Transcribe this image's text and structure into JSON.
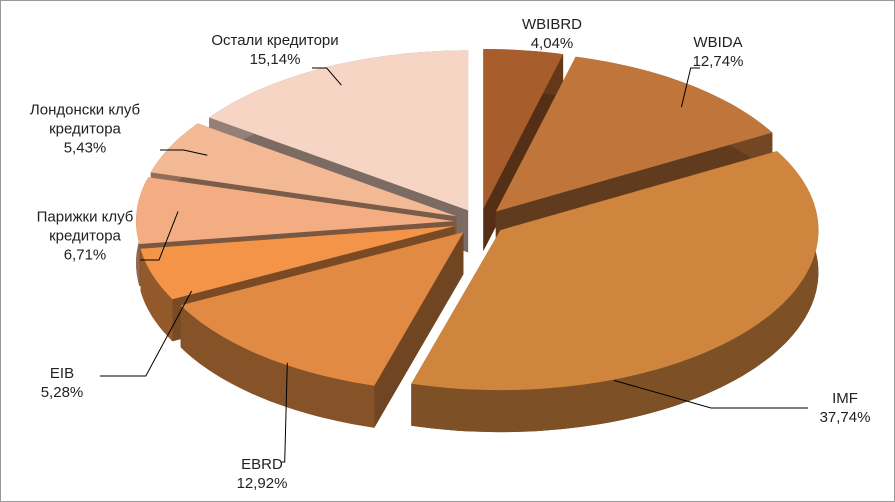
{
  "chart_data": {
    "type": "pie",
    "categories": [
      "WBIBRD",
      "WBIDA",
      "IMF",
      "EBRD",
      "EIB",
      "Парижки клуб кредитора",
      "Лондонски клуб кредитора",
      "Остали кредитори"
    ],
    "values": [
      4.04,
      12.74,
      37.74,
      12.92,
      5.28,
      6.71,
      5.43,
      15.14
    ],
    "value_labels": [
      "4,04%",
      "12,74%",
      "37,74%",
      "12,92%",
      "5,28%",
      "6,71%",
      "5,43%",
      "15,14%"
    ],
    "colors": [
      "#a85e2c",
      "#c0763a",
      "#d0853f",
      "#e08a44",
      "#f39448",
      "#f4ad82",
      "#f3b894",
      "#f7d5c5"
    ]
  }
}
